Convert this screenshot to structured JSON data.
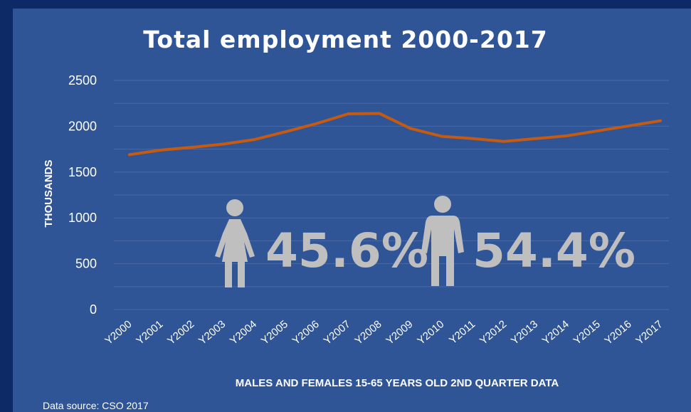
{
  "colors": {
    "background": "#0e2a66",
    "plot_area": "#2f5597",
    "line": "#c55a11",
    "gridline": "#4a6aa6",
    "icon": "#bfbfbf",
    "text": "#ffffff"
  },
  "chart_data": {
    "type": "line",
    "title": "Total employment 2000-2017",
    "xlabel": "MALES AND FEMALES 15-65 YEARS OLD 2ND QUARTER DATA",
    "ylabel": "THOUSANDS",
    "ylim": [
      0,
      2500
    ],
    "yticks": [
      "0",
      "500",
      "1000",
      "1500",
      "2000",
      "2500"
    ],
    "grid": true,
    "categories": [
      "Y2000",
      "Y2001",
      "Y2002",
      "Y2003",
      "Y2004",
      "Y2005",
      "Y2006",
      "Y2007",
      "Y2008",
      "Y2009",
      "Y2010",
      "Y2011",
      "Y2012",
      "Y2013",
      "Y2014",
      "Y2015",
      "Y2016",
      "Y2017"
    ],
    "series": [
      {
        "values": [
          1690,
          1740,
          1770,
          1805,
          1855,
          1940,
          2030,
          2135,
          2140,
          1975,
          1890,
          1865,
          1835,
          1865,
          1895,
          1950,
          2005,
          2060
        ]
      }
    ],
    "annotations": [
      {
        "icon": "female-figure-icon",
        "text": "45.6%"
      },
      {
        "icon": "male-figure-icon",
        "text": "54.4%"
      }
    ]
  },
  "source_text": "Data source: CSO 2017"
}
